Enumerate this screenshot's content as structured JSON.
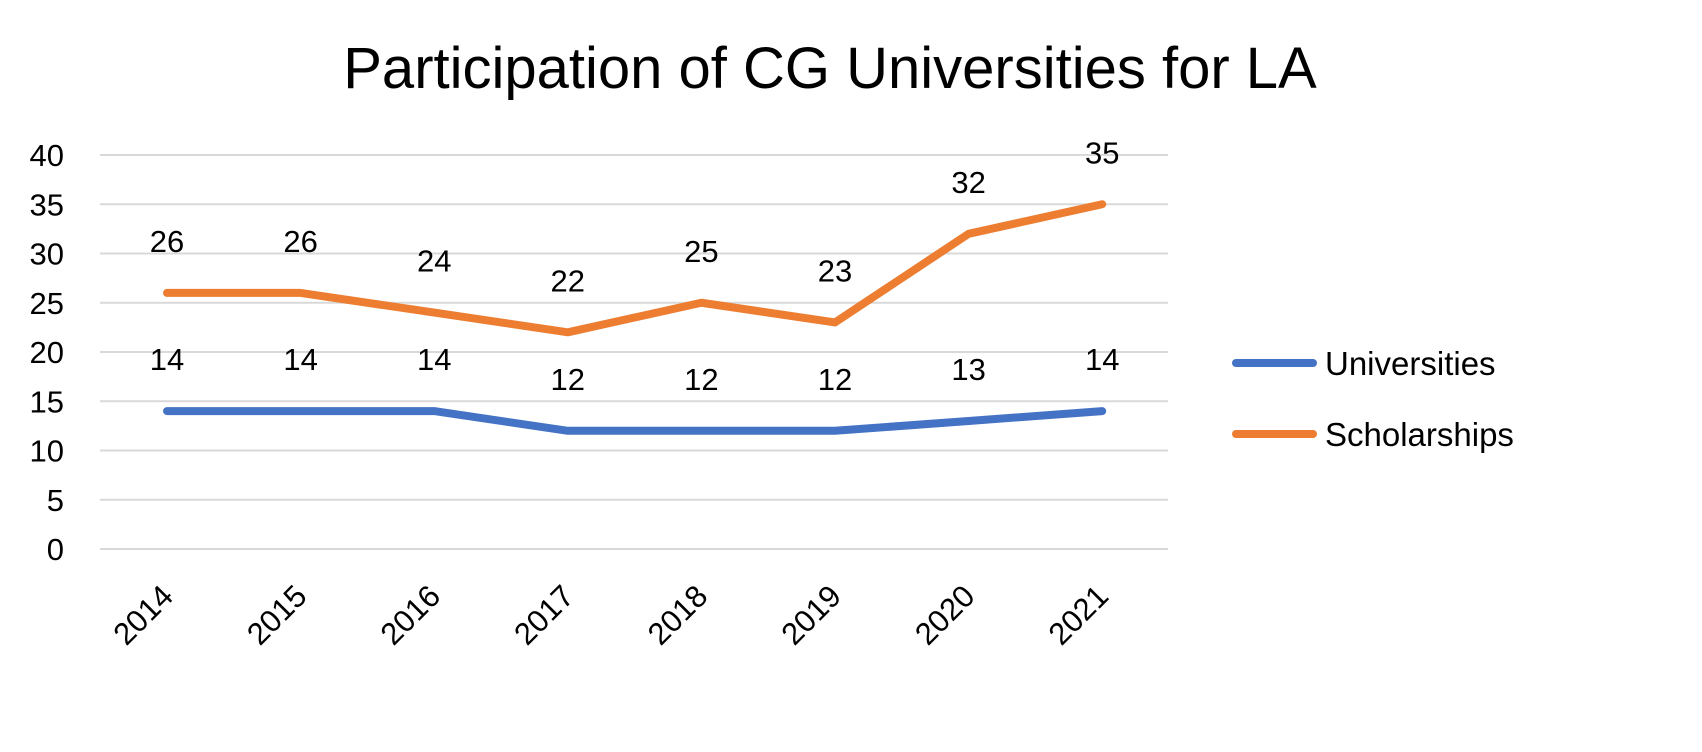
{
  "chart_data": {
    "type": "line",
    "title": "Participation of CG Universities for LA",
    "xlabel": "",
    "ylabel": "",
    "categories": [
      "2014",
      "2015",
      "2016",
      "2017",
      "2018",
      "2019",
      "2020",
      "2021"
    ],
    "series": [
      {
        "name": "Universities",
        "values": [
          14,
          14,
          14,
          12,
          12,
          12,
          13,
          14
        ],
        "color": "#4472C4"
      },
      {
        "name": "Scholarships",
        "values": [
          26,
          26,
          24,
          22,
          25,
          23,
          32,
          35
        ],
        "color": "#ED7D31"
      }
    ],
    "ylim": [
      0,
      40
    ],
    "yticks": [
      0,
      5,
      10,
      15,
      20,
      25,
      30,
      35,
      40
    ],
    "grid": true,
    "legend": "right",
    "data_labels": true
  }
}
